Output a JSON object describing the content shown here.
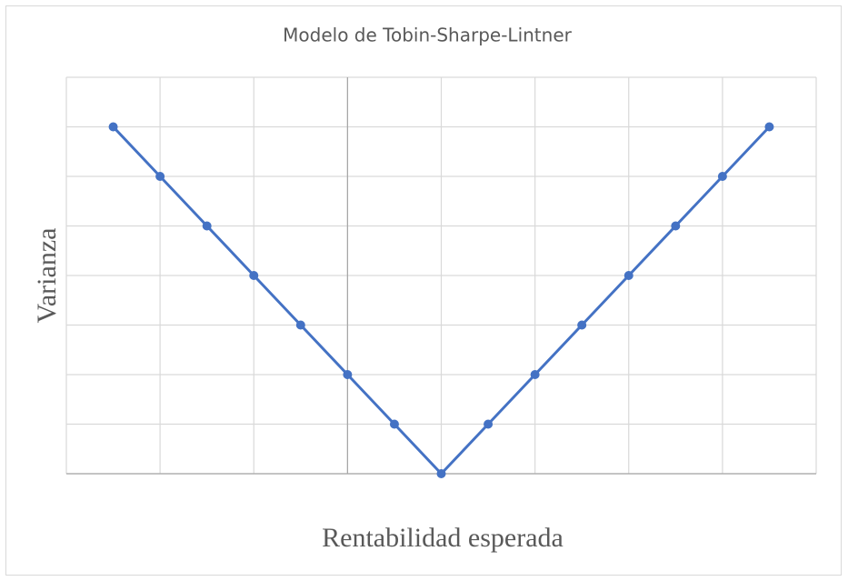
{
  "chart_data": {
    "type": "line",
    "title": "Modelo de Tobin-Sharpe-Lintner",
    "x_label": "Rentabilidad esperada",
    "y_label": "Varianza",
    "x": [
      -7,
      -6,
      -5,
      -4,
      -3,
      -2,
      -1,
      0,
      1,
      2,
      3,
      4,
      5,
      6,
      7
    ],
    "series": [
      {
        "name": "Varianza",
        "color": "#4472c4",
        "values": [
          7,
          6,
          5,
          4,
          3,
          2,
          1,
          0,
          1,
          2,
          3,
          4,
          5,
          6,
          7
        ]
      }
    ],
    "xlim": [
      -8,
      8
    ],
    "xticks": [
      -8,
      -6,
      -4,
      -2,
      0,
      2,
      4,
      6,
      8
    ],
    "ylim": [
      0,
      8
    ],
    "yticks": [
      0,
      1,
      2,
      3,
      4,
      5,
      6,
      7,
      8
    ],
    "y_axis_at": -2,
    "grid": true,
    "markers": true
  }
}
